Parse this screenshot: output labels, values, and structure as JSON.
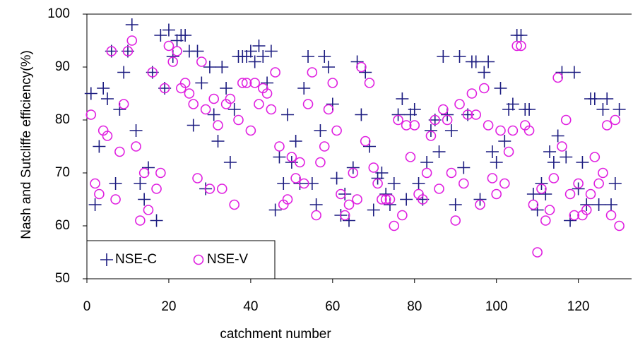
{
  "chart_data": {
    "type": "scatter",
    "x_label": "catchment number",
    "y_label": "Nash and Sutcliffe efficiency(%)",
    "x": [
      1,
      2,
      3,
      4,
      5,
      6,
      7,
      8,
      9,
      10,
      11,
      12,
      13,
      14,
      15,
      16,
      17,
      18,
      19,
      20,
      21,
      22,
      23,
      24,
      25,
      26,
      27,
      28,
      29,
      30,
      31,
      32,
      33,
      34,
      35,
      36,
      37,
      38,
      39,
      40,
      41,
      42,
      43,
      44,
      45,
      46,
      47,
      48,
      49,
      50,
      51,
      52,
      53,
      54,
      55,
      56,
      57,
      58,
      59,
      60,
      61,
      62,
      63,
      64,
      65,
      66,
      67,
      68,
      69,
      70,
      71,
      72,
      73,
      74,
      75,
      76,
      77,
      78,
      79,
      80,
      81,
      82,
      83,
      84,
      85,
      86,
      87,
      88,
      89,
      90,
      91,
      92,
      93,
      94,
      95,
      96,
      97,
      98,
      99,
      100,
      101,
      102,
      103,
      104,
      105,
      106,
      107,
      108,
      109,
      110,
      111,
      112,
      113,
      114,
      115,
      116,
      117,
      118,
      119,
      120,
      121,
      122,
      123,
      124,
      125,
      126,
      127,
      128,
      129,
      130
    ],
    "series": [
      {
        "name": "NSE-C",
        "color": "#1c1c80",
        "marker": "plus",
        "values": [
          85,
          64,
          75,
          86,
          84,
          93,
          68,
          82,
          89,
          93,
          98,
          78,
          68,
          65,
          71,
          89,
          61,
          96,
          86,
          97,
          92,
          95,
          96,
          96,
          93,
          79,
          93,
          87,
          67,
          90,
          81,
          76,
          90,
          86,
          72,
          82,
          92,
          92,
          92,
          93,
          91,
          94,
          92,
          87,
          93,
          63,
          73,
          68,
          81,
          72,
          76,
          68,
          86,
          92,
          68,
          64,
          78,
          92,
          90,
          83,
          69,
          62,
          66,
          61,
          71,
          91,
          81,
          89,
          75,
          63,
          69,
          70,
          66,
          64,
          68,
          81,
          84,
          65,
          81,
          82,
          68,
          65,
          72,
          78,
          80,
          74,
          92,
          81,
          78,
          64,
          92,
          71,
          81,
          91,
          91,
          65,
          89,
          91,
          74,
          72,
          86,
          76,
          82,
          83,
          96,
          96,
          82,
          82,
          66,
          63,
          68,
          66,
          74,
          72,
          77,
          89,
          73,
          61,
          89,
          67,
          72,
          64,
          84,
          84,
          64,
          82,
          84,
          64,
          68,
          82
        ]
      },
      {
        "name": "NSE-V",
        "color": "#e020e0",
        "marker": "circle",
        "values": [
          81,
          68,
          66,
          78,
          77,
          93,
          65,
          74,
          83,
          93,
          95,
          75,
          61,
          70,
          63,
          89,
          67,
          70,
          86,
          94,
          91,
          93,
          86,
          87,
          85,
          83,
          69,
          91,
          82,
          67,
          84,
          79,
          67,
          83,
          84,
          64,
          80,
          87,
          87,
          78,
          87,
          83,
          86,
          85,
          82,
          89,
          75,
          64,
          65,
          73,
          69,
          72,
          68,
          83,
          89,
          62,
          72,
          75,
          82,
          87,
          78,
          66,
          62,
          64,
          70,
          65,
          90,
          76,
          87,
          71,
          68,
          65,
          65,
          65,
          60,
          80,
          62,
          79,
          73,
          79,
          66,
          65,
          70,
          77,
          80,
          67,
          82,
          80,
          70,
          61,
          83,
          68,
          81,
          85,
          81,
          64,
          86,
          79,
          69,
          66,
          78,
          68,
          74,
          78,
          94,
          94,
          79,
          78,
          64,
          55,
          67,
          61,
          63,
          69,
          88,
          75,
          80,
          66,
          62,
          68,
          62,
          63,
          66,
          73,
          68,
          70,
          79,
          62,
          80,
          60
        ]
      }
    ],
    "xlim": [
      0,
      133
    ],
    "ylim": [
      50,
      100
    ],
    "xticks": [
      0,
      20,
      40,
      60,
      80,
      100,
      120
    ],
    "yticks": [
      50,
      60,
      70,
      80,
      90,
      100
    ],
    "grid": false,
    "legend": "lower left"
  }
}
